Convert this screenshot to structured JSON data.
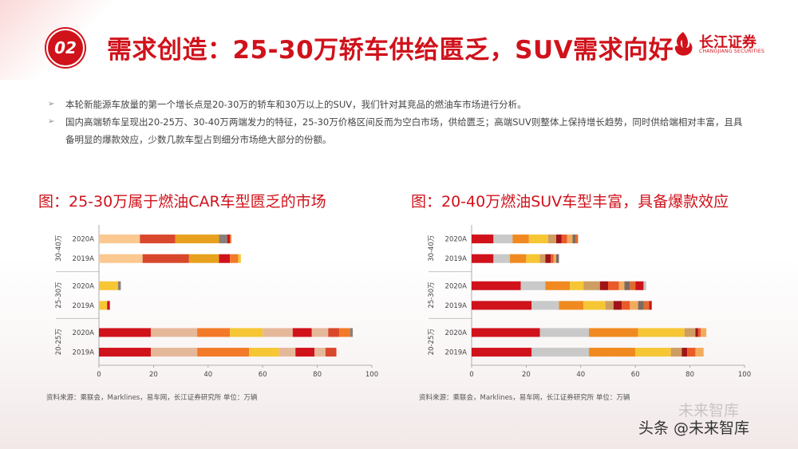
{
  "header": {
    "badge": "02",
    "title": "需求创造：25-30万轿车供给匮乏，SUV需求向好",
    "logo_cn": "长江证券",
    "logo_en": "CHANGJIANG SECURITIES"
  },
  "bullets": [
    "本轮新能源车放量的第一个增长点是20-30万的轿车和30万以上的SUV，我们针对其竞品的燃油车市场进行分析。",
    "国内高端轿车呈现出20-25万、30-40万两端发力的特征，25-30万价格区间反而为空白市场，供给匮乏；高端SUV则整体上保持增长趋势，同时供给端相对丰富，且具备明显的爆款效应，少数几款车型占到细分市场绝大部分的份额。"
  ],
  "colors": {
    "brand": "#d0121b",
    "left_palette": [
      "#fbc890",
      "#d9482c",
      "#e8a11e",
      "#8a7f78",
      "#d0121b",
      "#f27a28",
      "#f6c634",
      "#e6b89a"
    ],
    "right_palette": [
      "#d0121b",
      "#c9c9c9",
      "#f08a20",
      "#f6c634",
      "#ce9d62",
      "#a01418",
      "#ea5a2a",
      "#f2ab5d",
      "#7a6a62",
      "#e06c2e"
    ]
  },
  "chart_data": [
    {
      "type": "bar",
      "orientation": "horizontal",
      "stacked": true,
      "title": "图：25-30万属于燃油CAR车型匮乏的市场",
      "categories": [
        "2020A",
        "2019A",
        "2020A",
        "2019A",
        "2020A",
        "2019A"
      ],
      "groups": [
        {
          "label": "30-40万",
          "rows": [
            0,
            1
          ]
        },
        {
          "label": "25-30万",
          "rows": [
            2,
            3
          ]
        },
        {
          "label": "20-25万",
          "rows": [
            4,
            5
          ]
        }
      ],
      "xlim": [
        0,
        100
      ],
      "xticks": [
        0,
        20,
        40,
        60,
        80,
        100
      ],
      "rows": [
        [
          15,
          13,
          16,
          3,
          1,
          0.5
        ],
        [
          16,
          17,
          11,
          4,
          3,
          1
        ],
        [
          7,
          1
        ],
        [
          3,
          1
        ],
        [
          19,
          17,
          12,
          12,
          11,
          7,
          6,
          4,
          4,
          1
        ],
        [
          19,
          17,
          19,
          11,
          6,
          7,
          4,
          4
        ]
      ],
      "row_palettes": [
        [
          0,
          1,
          2,
          3,
          4,
          5
        ],
        [
          0,
          1,
          2,
          4,
          5,
          6
        ],
        [
          6,
          3
        ],
        [
          6,
          4
        ],
        [
          4,
          7,
          5,
          6,
          7,
          4,
          7,
          1,
          5,
          3
        ],
        [
          4,
          7,
          5,
          6,
          7,
          4,
          7,
          1
        ]
      ],
      "source": "资料来源：乘联会，Marklines，易车网，长江证券研究所   单位：万辆"
    },
    {
      "type": "bar",
      "orientation": "horizontal",
      "stacked": true,
      "title": "图：20-40万燃油SUV车型丰富，具备爆款效应",
      "categories": [
        "2020A",
        "2019A",
        "2020A",
        "2019A",
        "2020A",
        "2019A"
      ],
      "groups": [
        {
          "label": "30-40万",
          "rows": [
            0,
            1
          ]
        },
        {
          "label": "25-30万",
          "rows": [
            2,
            3
          ]
        },
        {
          "label": "20-25万",
          "rows": [
            4,
            5
          ]
        }
      ],
      "xlim": [
        0,
        100
      ],
      "xticks": [
        0,
        20,
        40,
        60,
        80,
        100
      ],
      "rows": [
        [
          8,
          7,
          6,
          7,
          3,
          2,
          2,
          2,
          1,
          1
        ],
        [
          8,
          6,
          6,
          5,
          2,
          2,
          1,
          1,
          1
        ],
        [
          18,
          9,
          9,
          5,
          6,
          3,
          4,
          2,
          2,
          2,
          3,
          1
        ],
        [
          22,
          10,
          9,
          8,
          3,
          3,
          3,
          3,
          2,
          2,
          1
        ],
        [
          25,
          18,
          18,
          17,
          4,
          1,
          1,
          2
        ],
        [
          22,
          21,
          17,
          13,
          4,
          2,
          3,
          3
        ]
      ],
      "row_palettes": [
        [
          0,
          1,
          2,
          3,
          4,
          5,
          6,
          7,
          8,
          9
        ],
        [
          0,
          1,
          2,
          3,
          4,
          5,
          6,
          7,
          8
        ],
        [
          0,
          1,
          2,
          3,
          4,
          5,
          6,
          7,
          8,
          9,
          0,
          1
        ],
        [
          0,
          1,
          2,
          3,
          4,
          5,
          6,
          7,
          8,
          9,
          0
        ],
        [
          0,
          1,
          2,
          3,
          4,
          5,
          6,
          7
        ],
        [
          0,
          1,
          2,
          3,
          4,
          5,
          6,
          7
        ]
      ],
      "source": "资料来源：乘联会，Marklines，易车网，长江证券研究所   单位：万辆"
    }
  ],
  "watermark": {
    "faint": "未来智库",
    "main": "头条 @未来智库"
  }
}
